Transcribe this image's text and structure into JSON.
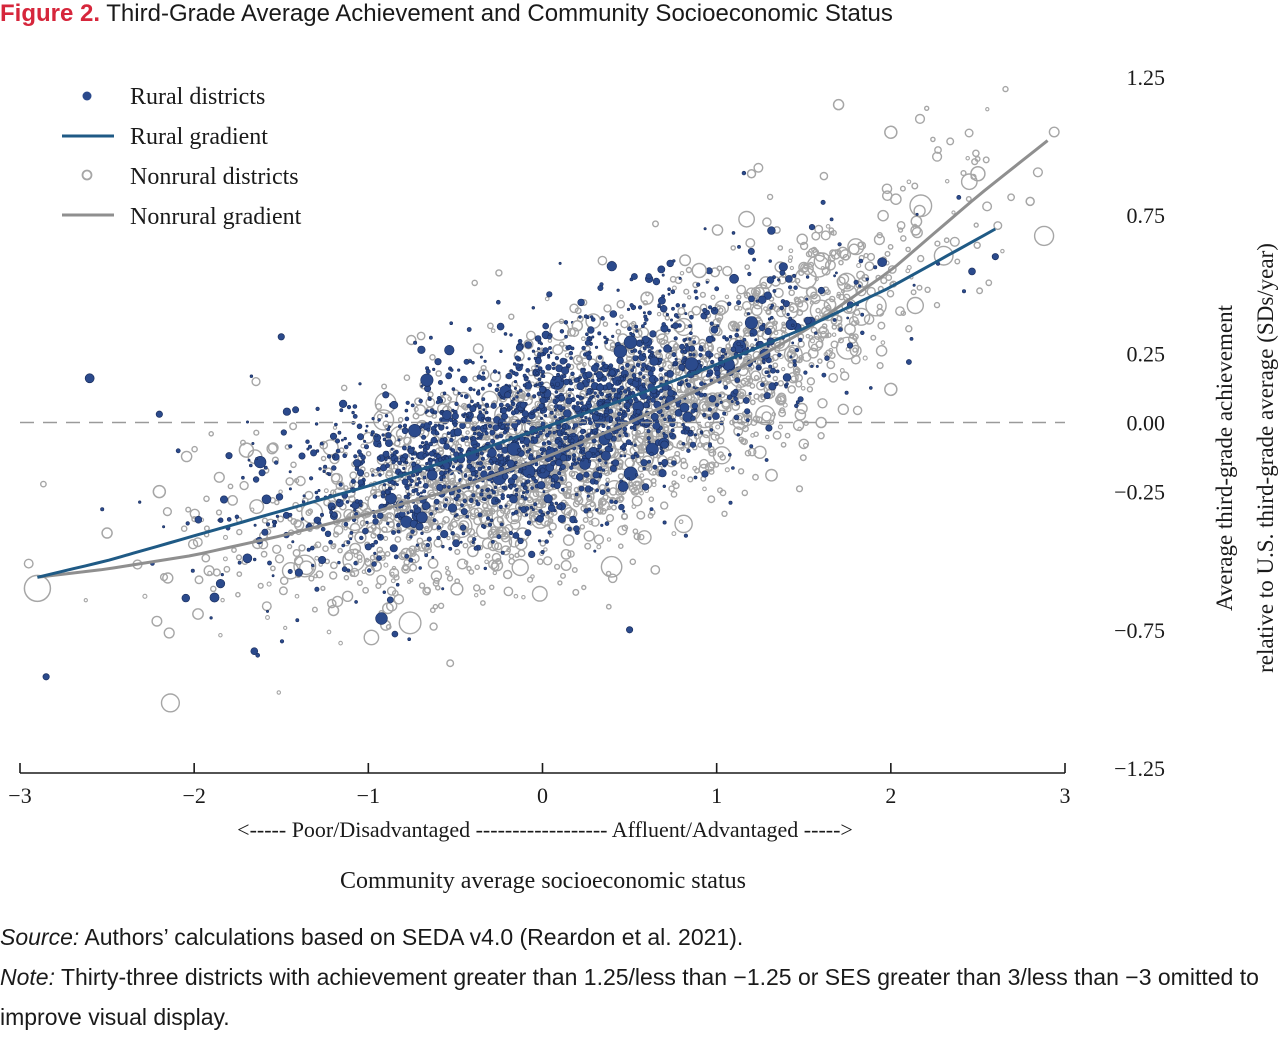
{
  "figure": {
    "label": "Figure 2.",
    "title": "Third-Grade Average Achievement and Community Socioeconomic Status"
  },
  "legend": {
    "items": [
      {
        "label": "Rural districts",
        "style": "filled-dot"
      },
      {
        "label": "Rural gradient",
        "style": "line"
      },
      {
        "label": "Nonrural districts",
        "style": "open-circle"
      },
      {
        "label": "Nonrural gradient",
        "style": "line"
      }
    ]
  },
  "colors": {
    "rural_fill": "#2b4a8c",
    "rural_edge": "#1b2f5e",
    "rural_line": "#1f5a85",
    "nonrural": "#a6a6a6",
    "nonrural_line": "#8f8f8f",
    "reference": "#9a9a9a",
    "axis": "#1a1a1a",
    "figure_label": "#d6263b"
  },
  "chart_data": {
    "type": "scatter",
    "title": "Third-Grade Average Achievement and Community Socioeconomic Status",
    "xlabel": "Community average socioeconomic status",
    "direction_label": "<----- Poor/Disadvantaged ------------------ Affluent/Advantaged ----->",
    "ylabel": [
      "Average third-grade achievement",
      "relative to U.S. third-grade average (SDs/year)"
    ],
    "xlim": [
      -3,
      3
    ],
    "ylim": [
      -1.25,
      1.25
    ],
    "xticks": [
      -3,
      -2,
      -1,
      0,
      1,
      2,
      3
    ],
    "xtick_labels": [
      "−3",
      "−2",
      "−1",
      "0",
      "1",
      "2",
      "3"
    ],
    "yticks": [
      1.25,
      0.75,
      0.25,
      0.0,
      -0.25,
      -0.75,
      -1.25
    ],
    "ytick_labels": [
      "1.25",
      "0.75",
      "0.25",
      "0.00",
      "−0.25",
      "−0.75",
      "−1.25"
    ],
    "y_axis_side": "right",
    "reference_line": {
      "y": 0.0,
      "style": "dashed"
    },
    "legend_position": "top-left",
    "grid": false,
    "n_points_approx": 9000,
    "series": [
      {
        "name": "Rural districts",
        "marker": "filled-circle",
        "sample_points": [
          [
            -2.6,
            0.16
          ],
          [
            -2.2,
            0.03
          ],
          [
            -1.8,
            -0.12
          ],
          [
            -1.5,
            0.31
          ],
          [
            -1.2,
            -0.05
          ],
          [
            -0.9,
            0.1
          ],
          [
            -0.6,
            0.22
          ],
          [
            -0.4,
            0.05
          ],
          [
            -0.2,
            0.1
          ],
          [
            0.0,
            0.12
          ],
          [
            0.2,
            0.05
          ],
          [
            0.4,
            0.18
          ],
          [
            0.6,
            0.0
          ],
          [
            0.8,
            0.2
          ],
          [
            1.1,
            0.52
          ],
          [
            1.4,
            0.43
          ],
          [
            1.95,
            0.58
          ],
          [
            2.6,
            0.6
          ],
          [
            -2.85,
            -0.92
          ],
          [
            -1.0,
            -0.45
          ],
          [
            0.5,
            -0.75
          ],
          [
            1.3,
            -0.02
          ]
        ]
      },
      {
        "name": "Rural gradient",
        "marker": "line",
        "x": [
          -2.9,
          -2.5,
          -2.0,
          -1.5,
          -1.0,
          -0.5,
          0.0,
          0.5,
          1.0,
          1.5,
          2.0,
          2.6
        ],
        "values": [
          -0.56,
          -0.5,
          -0.41,
          -0.32,
          -0.23,
          -0.13,
          -0.02,
          0.09,
          0.21,
          0.34,
          0.49,
          0.7
        ]
      },
      {
        "name": "Nonrural districts",
        "marker": "open-circle",
        "sample_points": [
          [
            -2.9,
            -0.6
          ],
          [
            -2.5,
            -0.4
          ],
          [
            -2.2,
            -0.25
          ],
          [
            -1.7,
            -0.1
          ],
          [
            -1.4,
            -0.5
          ],
          [
            -1.2,
            -0.68
          ],
          [
            -0.8,
            -0.3
          ],
          [
            -0.5,
            -0.2
          ],
          [
            -0.2,
            -0.55
          ],
          [
            0.2,
            0.35
          ],
          [
            0.6,
            0.45
          ],
          [
            0.9,
            0.55
          ],
          [
            1.2,
            0.9
          ],
          [
            1.7,
            1.15
          ],
          [
            2.0,
            1.05
          ],
          [
            2.5,
            0.9
          ],
          [
            2.8,
            0.8
          ],
          [
            1.6,
            0.0
          ],
          [
            2.0,
            0.12
          ]
        ]
      },
      {
        "name": "Nonrural gradient",
        "marker": "line",
        "x": [
          -2.9,
          -2.5,
          -2.0,
          -1.5,
          -1.0,
          -0.5,
          0.0,
          0.5,
          1.0,
          1.5,
          2.0,
          2.5,
          2.9
        ],
        "values": [
          -0.56,
          -0.53,
          -0.48,
          -0.41,
          -0.33,
          -0.24,
          -0.13,
          0.0,
          0.15,
          0.33,
          0.55,
          0.82,
          1.02
        ]
      }
    ]
  },
  "footer": {
    "source_lead": "Source:",
    "source_text": " Authors’ calculations based on SEDA v4.0 (Reardon et al. 2021).",
    "note_lead": "Note:",
    "note_text": " Thirty-three districts with achievement greater than 1.25/less than −1.25 or SES greater than 3/less than −3 omitted to improve visual display."
  }
}
